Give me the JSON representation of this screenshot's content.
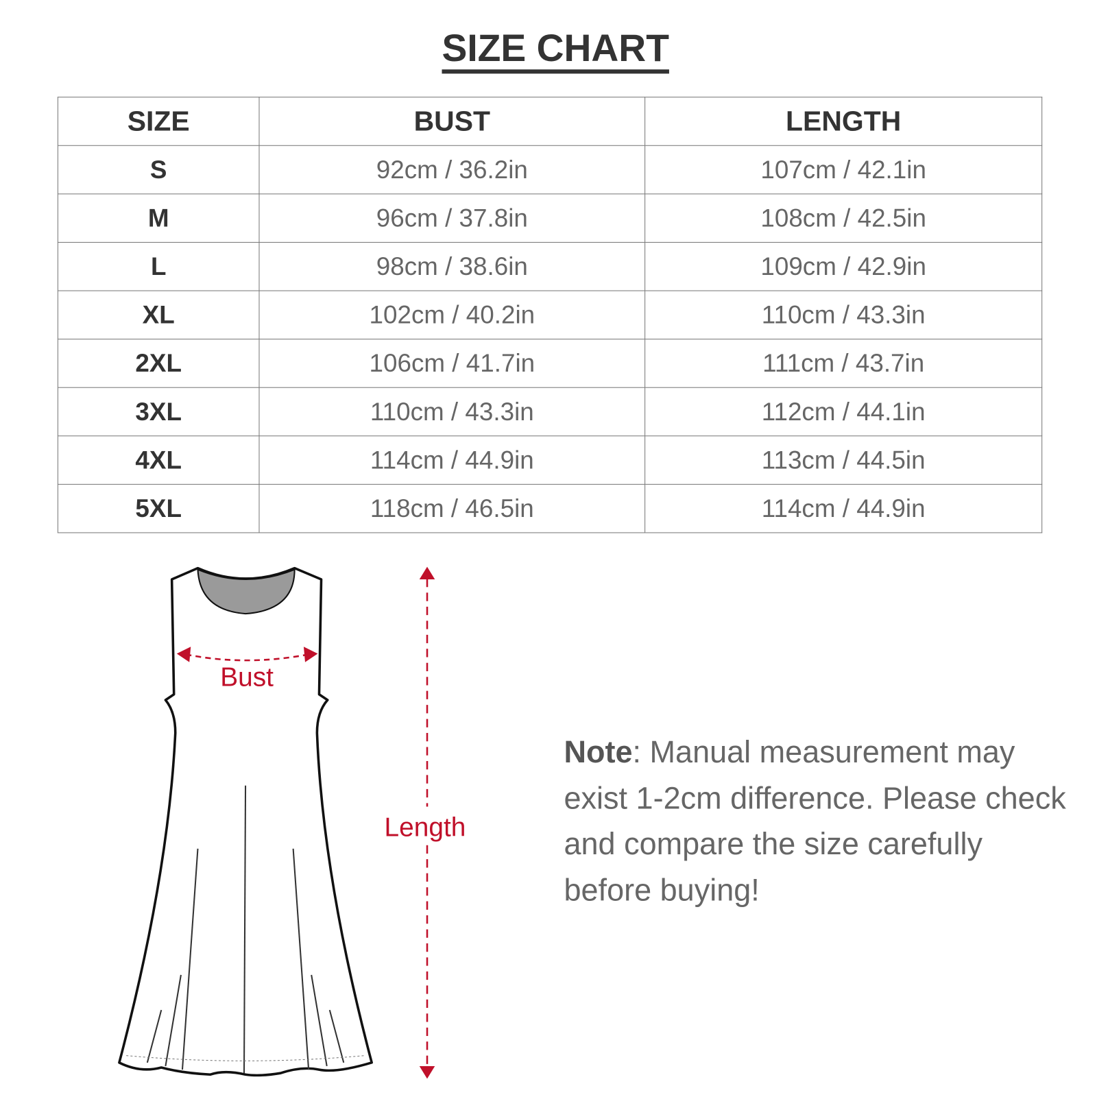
{
  "title": "SIZE CHART",
  "table": {
    "headers": [
      "SIZE",
      "BUST",
      "LENGTH"
    ],
    "rows": [
      [
        "S",
        "92cm / 36.2in",
        "107cm / 42.1in"
      ],
      [
        "M",
        "96cm / 37.8in",
        "108cm / 42.5in"
      ],
      [
        "L",
        "98cm / 38.6in",
        "109cm / 42.9in"
      ],
      [
        "XL",
        "102cm / 40.2in",
        "110cm / 43.3in"
      ],
      [
        "2XL",
        "106cm / 41.7in",
        "111cm / 43.7in"
      ],
      [
        "3XL",
        "110cm / 43.3in",
        "112cm / 44.1in"
      ],
      [
        "4XL",
        "114cm / 44.9in",
        "113cm / 44.5in"
      ],
      [
        "5XL",
        "118cm / 46.5in",
        "114cm / 44.9in"
      ]
    ]
  },
  "diagram": {
    "bust_label": "Bust",
    "length_label": "Length",
    "accent_color": "#c0102a"
  },
  "note": {
    "label": "Note",
    "text": ": Manual measurement may exist 1-2cm difference. Please check and compare the size carefully before buying!"
  }
}
